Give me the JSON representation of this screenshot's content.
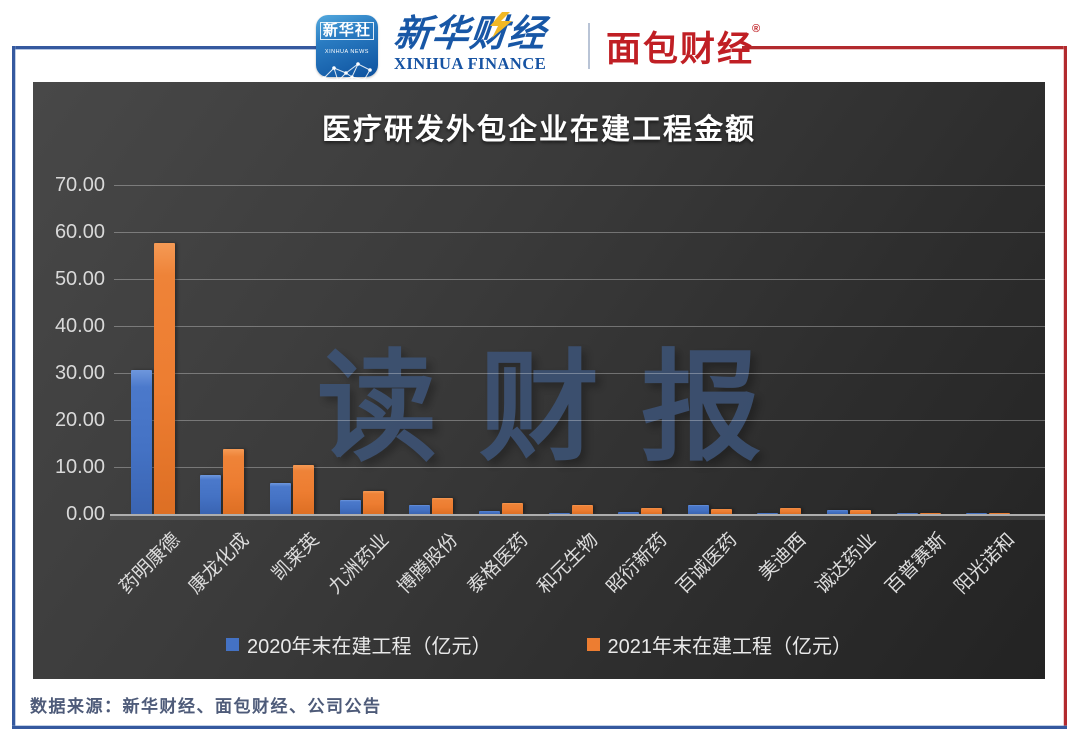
{
  "header": {
    "app_icon": {
      "title": "新华社",
      "subtitle": "XINHUA NEWS"
    },
    "finance_logo": {
      "zh": "新华财经",
      "en": "XINHUA FINANCE"
    },
    "mianbao_logo": {
      "zh": "面包财经",
      "registered": "®"
    }
  },
  "chart": {
    "title": "医疗研发外包企业在建工程金额",
    "watermark": "读财报"
  },
  "chart_data": {
    "type": "bar",
    "title": "医疗研发外包企业在建工程金额",
    "categories": [
      "药明康德",
      "康龙化成",
      "凯莱英",
      "九洲药业",
      "博腾股份",
      "泰格医药",
      "和元生物",
      "昭衍新药",
      "百诚医药",
      "美迪西",
      "诚达药业",
      "百普赛斯",
      "阳光诺和"
    ],
    "series": [
      {
        "name": "2020年末在建工程（亿元）",
        "color": "#4472c4",
        "values": [
          30.7,
          8.2,
          6.6,
          3.0,
          1.9,
          0.6,
          0.2,
          0.5,
          2.0,
          0.2,
          0.9,
          0.25,
          0.05
        ]
      },
      {
        "name": "2021年末在建工程（亿元）",
        "color": "#ed7d31",
        "values": [
          57.6,
          13.8,
          10.5,
          4.8,
          3.5,
          2.3,
          2.0,
          1.3,
          1.1,
          1.2,
          0.8,
          0.3,
          0.3
        ]
      }
    ],
    "ylim": [
      0,
      70
    ],
    "ytick_step": 10,
    "ytick_decimals": 2,
    "grid": true,
    "legend_position": "bottom",
    "background": "dark"
  },
  "footer": {
    "source": "数据来源：新华财经、面包财经、公司公告"
  },
  "colors": {
    "bar_2020": "#4472c4",
    "bar_2021": "#ed7d31",
    "border_blue": "#35599f",
    "border_red": "#b22a2e",
    "watermark_blue": "#3d5478"
  }
}
